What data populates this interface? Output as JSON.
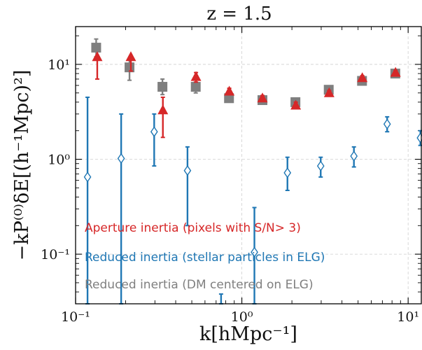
{
  "chart_data": {
    "type": "scatter",
    "title": "z = 1.5",
    "xlabel": "k[hMpc⁻¹]",
    "ylabel": "−kP⁽⁰⁾δE[(h⁻¹Mpc)²]",
    "xscale": "log",
    "yscale": "log",
    "xlim": [
      0.1,
      12
    ],
    "ylim": [
      0.03,
      25
    ],
    "grid": true,
    "legend_position": "bottom-left",
    "x_ticks": [
      {
        "value": 0.1,
        "label": "10⁻¹"
      },
      {
        "value": 1,
        "label": "10⁰"
      },
      {
        "value": 10,
        "label": "10¹"
      }
    ],
    "y_ticks": [
      {
        "value": 0.1,
        "label": "10⁻¹"
      },
      {
        "value": 1,
        "label": "10⁰"
      },
      {
        "value": 10,
        "label": "10¹"
      }
    ],
    "series": [
      {
        "name": "Aperture inertia (pixels with S/N> 3)",
        "color": "#d62728",
        "marker": "triangle",
        "points": [
          {
            "x": 0.135,
            "y": 12,
            "lo": 7,
            "hi": 12
          },
          {
            "x": 0.215,
            "y": 12,
            "lo": 8.5,
            "hi": 12
          },
          {
            "x": 0.335,
            "y": 3.3,
            "lo": 1.7,
            "hi": 4.5
          },
          {
            "x": 0.53,
            "y": 7.4,
            "lo": 6.5,
            "hi": 8.2
          },
          {
            "x": 0.84,
            "y": 5.2,
            "lo": 4.8,
            "hi": 5.6
          },
          {
            "x": 1.33,
            "y": 4.4,
            "lo": 4.1,
            "hi": 4.7
          },
          {
            "x": 2.11,
            "y": 3.7,
            "lo": 3.4,
            "hi": 4.0
          },
          {
            "x": 3.35,
            "y": 5.0,
            "lo": 4.7,
            "hi": 5.3
          },
          {
            "x": 5.3,
            "y": 7.2,
            "lo": 6.8,
            "hi": 7.6
          },
          {
            "x": 8.4,
            "y": 8.2,
            "lo": 7.8,
            "hi": 8.6
          }
        ]
      },
      {
        "name": "Reduced inertia (stellar particles in ELG)",
        "color": "#1f77b4",
        "marker": "diamond-open",
        "points": [
          {
            "x": 0.118,
            "y": 0.65,
            "lo": 0.03,
            "hi": 4.5
          },
          {
            "x": 0.188,
            "y": 1.02,
            "lo": 0.03,
            "hi": 3.0
          },
          {
            "x": 0.297,
            "y": 1.95,
            "lo": 0.85,
            "hi": 3.0
          },
          {
            "x": 0.471,
            "y": 0.76,
            "lo": 0.2,
            "hi": 1.35
          },
          {
            "x": 0.75,
            "y": 0.032,
            "lo": 0.03,
            "hi": 0.038
          },
          {
            "x": 1.19,
            "y": 0.105,
            "lo": 0.03,
            "hi": 0.31
          },
          {
            "x": 1.88,
            "y": 0.72,
            "lo": 0.47,
            "hi": 1.05
          },
          {
            "x": 2.98,
            "y": 0.85,
            "lo": 0.65,
            "hi": 1.05
          },
          {
            "x": 4.72,
            "y": 1.08,
            "lo": 0.83,
            "hi": 1.35
          },
          {
            "x": 7.48,
            "y": 2.35,
            "lo": 1.95,
            "hi": 2.8
          },
          {
            "x": 11.85,
            "y": 1.68,
            "lo": 1.4,
            "hi": 2.0
          }
        ]
      },
      {
        "name": "Reduced inertia (DM centered on ELG)",
        "color": "#7f7f7f",
        "marker": "square",
        "points": [
          {
            "x": 0.133,
            "y": 15,
            "lo": 12,
            "hi": 18.5
          },
          {
            "x": 0.211,
            "y": 9.3,
            "lo": 6.8,
            "hi": 11.5
          },
          {
            "x": 0.333,
            "y": 5.8,
            "lo": 4.8,
            "hi": 7.0
          },
          {
            "x": 0.528,
            "y": 5.8,
            "lo": 5.0,
            "hi": 6.5
          },
          {
            "x": 0.837,
            "y": 4.4,
            "lo": 4.1,
            "hi": 4.7
          },
          {
            "x": 1.33,
            "y": 4.2,
            "lo": 3.9,
            "hi": 4.5
          },
          {
            "x": 2.1,
            "y": 4.0,
            "lo": 3.7,
            "hi": 4.3
          },
          {
            "x": 3.33,
            "y": 5.4,
            "lo": 5.1,
            "hi": 5.7
          },
          {
            "x": 5.28,
            "y": 6.7,
            "lo": 6.4,
            "hi": 7.0
          },
          {
            "x": 8.37,
            "y": 8.0,
            "lo": 7.7,
            "hi": 8.3
          }
        ]
      }
    ]
  }
}
